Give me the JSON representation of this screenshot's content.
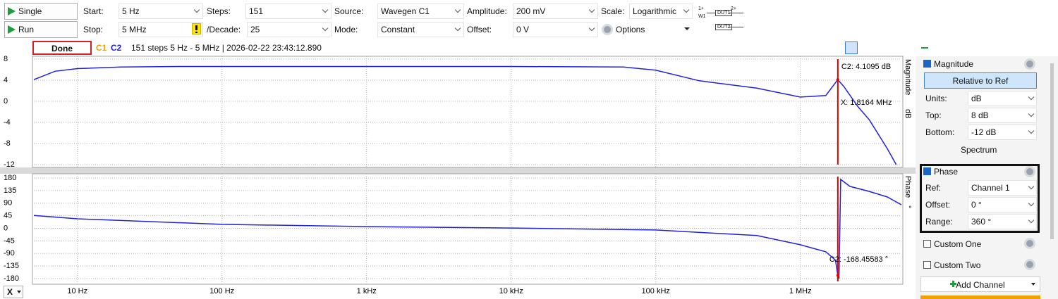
{
  "toolbar": {
    "single": "Single",
    "run": "Run",
    "rows": [
      [
        {
          "label": "Start:",
          "value": "5 Hz"
        },
        {
          "label": "Steps:",
          "value": "151"
        },
        {
          "label": "Source:",
          "value": "Wavegen C1"
        },
        {
          "label": "Amplitude:",
          "value": "200 mV"
        },
        {
          "label": "Scale:",
          "value": "Logarithmic"
        }
      ],
      [
        {
          "label": "Stop:",
          "value": "5 MHz"
        },
        {
          "label": "/Decade:",
          "value": "25"
        },
        {
          "label": "Mode:",
          "value": "Constant"
        },
        {
          "label": "Offset:",
          "value": "0 V"
        }
      ]
    ],
    "options": "Options",
    "diagram": [
      "1+",
      "W1",
      "DUT1",
      "2+",
      "DUT2"
    ]
  },
  "status": {
    "state": "Done",
    "c1": "C1",
    "info": "151 steps  5 Hz - 5 MHz | 2026-02-22 23:43:12.890"
  },
  "chart_data": [
    {
      "type": "line",
      "y_title": "Magnitude",
      "y_unit": "dB",
      "log_x": true,
      "grid": true,
      "xlim": [
        5,
        5000000
      ],
      "ylim": [
        -12,
        8
      ],
      "yticks": [
        8,
        4,
        0,
        -4,
        -8,
        -12
      ],
      "series": [
        {
          "name": "C2",
          "color": "#2020e0",
          "x": [
            5,
            7,
            10,
            20,
            50,
            1000,
            10000,
            60000,
            100000,
            200000,
            500000,
            1000000,
            1500000,
            1816400,
            2000000,
            2500000,
            3000000,
            4000000,
            4600000
          ],
          "values": [
            4.1,
            5.7,
            6.2,
            6.5,
            6.6,
            6.6,
            6.6,
            6.5,
            5.9,
            3.9,
            2.5,
            0.8,
            1.1,
            4.1095,
            2.8,
            -1,
            -3.5,
            -9,
            -12
          ]
        }
      ],
      "cursor": {
        "x": 1816400,
        "x_label": "X: 1.8164 MHz",
        "y": 4.1095,
        "y_label": "C2: 4.1095 dB"
      }
    },
    {
      "type": "line",
      "y_title": "Phase",
      "y_unit": "°",
      "log_x": true,
      "grid": true,
      "xlim": [
        5,
        5000000
      ],
      "ylim": [
        -180,
        180
      ],
      "yticks": [
        180,
        135,
        90,
        45,
        0,
        -45,
        -90,
        -135,
        -180
      ],
      "xticks": [
        {
          "value": 10,
          "label": "10 Hz"
        },
        {
          "value": 100,
          "label": "100 Hz"
        },
        {
          "value": 1000,
          "label": "1 kHz"
        },
        {
          "value": 10000,
          "label": "10 kHz"
        },
        {
          "value": 100000,
          "label": "100 kHz"
        },
        {
          "value": 1000000,
          "label": "1 MHz"
        }
      ],
      "series": [
        {
          "color": "#2020e0",
          "x": [
            5,
            10,
            100,
            1000,
            10000,
            100000,
            500000,
            1000000,
            1500000,
            1750000,
            1816400,
            1850000,
            1900000,
            2200000,
            3000000,
            4000000,
            5000000
          ],
          "values": [
            46,
            34,
            14,
            6,
            1,
            -6,
            -26,
            -59,
            -84,
            -114,
            -168.45583,
            -180,
            175,
            150,
            132,
            112,
            84
          ]
        }
      ],
      "cursor": {
        "x": 1816400,
        "y": -168.45583,
        "y_label": "C2: -168.45583 °"
      }
    }
  ],
  "x_axis": {
    "button": "X"
  },
  "panel": {
    "magnitude": {
      "label": "Magnitude",
      "button": "Relative to Ref",
      "fields": [
        {
          "label": "Units:",
          "value": "dB"
        },
        {
          "label": "Top:",
          "value": "8 dB"
        },
        {
          "label": "Bottom:",
          "value": "-12 dB"
        }
      ],
      "footer": "Spectrum"
    },
    "phase": {
      "label": "Phase",
      "fields": [
        {
          "label": "Ref:",
          "value": "Channel 1"
        },
        {
          "label": "Offset:",
          "value": "0 °"
        },
        {
          "label": "Range:",
          "value": "360 °"
        }
      ]
    },
    "custom": [
      "Custom One",
      "Custom Two"
    ],
    "add_channel": "Add Channel"
  }
}
